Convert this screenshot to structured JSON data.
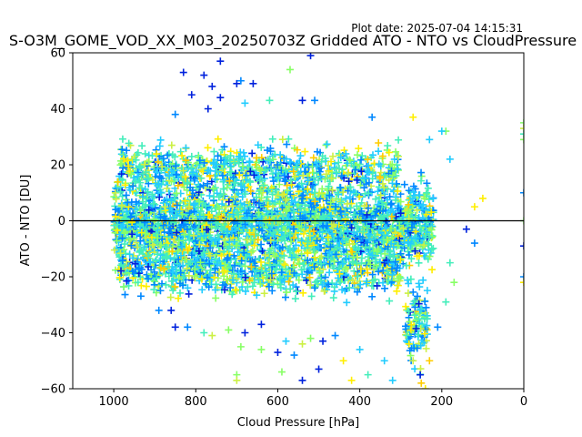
{
  "chart_data": {
    "type": "scatter",
    "title": "S-O3M_GOME_VOD_XX_M03_20250703Z Gridded ATO - NTO vs CloudPressure",
    "plot_date": "Plot date: 2025-07-04 14:15:31",
    "xlabel": "Cloud Pressure [hPa]",
    "ylabel": "ATO - NTO [DU]",
    "xlim": [
      1100,
      0
    ],
    "ylim": [
      -60,
      60
    ],
    "xticks": [
      1000,
      800,
      600,
      400,
      200,
      0
    ],
    "yticks": [
      -60,
      -40,
      -20,
      0,
      20,
      40,
      60
    ],
    "x_inverted": true,
    "reference_line_y": 0,
    "marker": "plus",
    "colors": [
      "#0022dd",
      "#0088ff",
      "#22ccff",
      "#44eebb",
      "#88ff66",
      "#ccf044",
      "#ffee00",
      "#ffcc00"
    ],
    "clusters": [
      {
        "x_range": [
          1000,
          220
        ],
        "y_center": -2,
        "y_spread": 12,
        "count": 2600
      },
      {
        "x_range": [
          990,
          300
        ],
        "y_center": 18,
        "y_spread": 7,
        "count": 700
      },
      {
        "x_range": [
          990,
          300
        ],
        "y_center": -18,
        "y_spread": 7,
        "count": 700
      },
      {
        "x_range": [
          290,
          235
        ],
        "y_center": -38,
        "y_spread": 12,
        "count": 110
      }
    ],
    "points": [
      {
        "x": 810,
        "y": 45,
        "c": 0
      },
      {
        "x": 830,
        "y": 53,
        "c": 0
      },
      {
        "x": 780,
        "y": 52,
        "c": 0
      },
      {
        "x": 760,
        "y": 48,
        "c": 0
      },
      {
        "x": 740,
        "y": 57,
        "c": 0
      },
      {
        "x": 700,
        "y": 49,
        "c": 0
      },
      {
        "x": 690,
        "y": 50,
        "c": 1
      },
      {
        "x": 660,
        "y": 49,
        "c": 0
      },
      {
        "x": 520,
        "y": 59,
        "c": 0
      },
      {
        "x": 570,
        "y": 54,
        "c": 4
      },
      {
        "x": 540,
        "y": 43,
        "c": 0
      },
      {
        "x": 510,
        "y": 43,
        "c": 1
      },
      {
        "x": 620,
        "y": 43,
        "c": 3
      },
      {
        "x": 680,
        "y": 42,
        "c": 2
      },
      {
        "x": 770,
        "y": 40,
        "c": 0
      },
      {
        "x": 740,
        "y": 44,
        "c": 0
      },
      {
        "x": 850,
        "y": 38,
        "c": 1
      },
      {
        "x": 370,
        "y": 37,
        "c": 1
      },
      {
        "x": 270,
        "y": 37,
        "c": 6
      },
      {
        "x": 190,
        "y": 32,
        "c": 4
      },
      {
        "x": 200,
        "y": 32,
        "c": 2
      },
      {
        "x": 230,
        "y": 29,
        "c": 2
      },
      {
        "x": 0,
        "y": 35,
        "c": 4
      },
      {
        "x": 0,
        "y": 33,
        "c": 5
      },
      {
        "x": 0,
        "y": 31,
        "c": 3
      },
      {
        "x": 0,
        "y": 29,
        "c": 4
      },
      {
        "x": 0,
        "y": 10,
        "c": 1
      },
      {
        "x": 180,
        "y": 22,
        "c": 2
      },
      {
        "x": 100,
        "y": 8,
        "c": 6
      },
      {
        "x": 120,
        "y": 5,
        "c": 6
      },
      {
        "x": 0,
        "y": 0,
        "c": 4
      },
      {
        "x": 140,
        "y": -3,
        "c": 0
      },
      {
        "x": 120,
        "y": -8,
        "c": 1
      },
      {
        "x": 0,
        "y": -9,
        "c": 0
      },
      {
        "x": 0,
        "y": -20,
        "c": 1
      },
      {
        "x": 0,
        "y": -22,
        "c": 6
      },
      {
        "x": 180,
        "y": -15,
        "c": 3
      },
      {
        "x": 170,
        "y": -22,
        "c": 4
      },
      {
        "x": 190,
        "y": -29,
        "c": 3
      },
      {
        "x": 210,
        "y": -38,
        "c": 1
      },
      {
        "x": 860,
        "y": -32,
        "c": 0
      },
      {
        "x": 890,
        "y": -32,
        "c": 1
      },
      {
        "x": 850,
        "y": -38,
        "c": 0
      },
      {
        "x": 820,
        "y": -38,
        "c": 1
      },
      {
        "x": 780,
        "y": -40,
        "c": 3
      },
      {
        "x": 760,
        "y": -41,
        "c": 5
      },
      {
        "x": 720,
        "y": -39,
        "c": 4
      },
      {
        "x": 680,
        "y": -40,
        "c": 0
      },
      {
        "x": 640,
        "y": -37,
        "c": 0
      },
      {
        "x": 600,
        "y": -47,
        "c": 0
      },
      {
        "x": 580,
        "y": -43,
        "c": 2
      },
      {
        "x": 560,
        "y": -48,
        "c": 1
      },
      {
        "x": 540,
        "y": -44,
        "c": 5
      },
      {
        "x": 520,
        "y": -42,
        "c": 4
      },
      {
        "x": 490,
        "y": -43,
        "c": 0
      },
      {
        "x": 460,
        "y": -41,
        "c": 1
      },
      {
        "x": 440,
        "y": -50,
        "c": 6
      },
      {
        "x": 400,
        "y": -46,
        "c": 2
      },
      {
        "x": 380,
        "y": -55,
        "c": 3
      },
      {
        "x": 340,
        "y": -50,
        "c": 2
      },
      {
        "x": 320,
        "y": -57,
        "c": 2
      },
      {
        "x": 420,
        "y": -57,
        "c": 6
      },
      {
        "x": 500,
        "y": -53,
        "c": 0
      },
      {
        "x": 540,
        "y": -57,
        "c": 0
      },
      {
        "x": 590,
        "y": -54,
        "c": 4
      },
      {
        "x": 690,
        "y": -45,
        "c": 4
      },
      {
        "x": 640,
        "y": -46,
        "c": 4
      },
      {
        "x": 700,
        "y": -55,
        "c": 4
      },
      {
        "x": 700,
        "y": -57,
        "c": 5
      },
      {
        "x": 240,
        "y": -60,
        "c": 6
      },
      {
        "x": 250,
        "y": -58,
        "c": 7
      },
      {
        "x": 270,
        "y": -50,
        "c": 5
      },
      {
        "x": 230,
        "y": -50,
        "c": 7
      },
      {
        "x": 280,
        "y": -44,
        "c": 6
      }
    ]
  }
}
